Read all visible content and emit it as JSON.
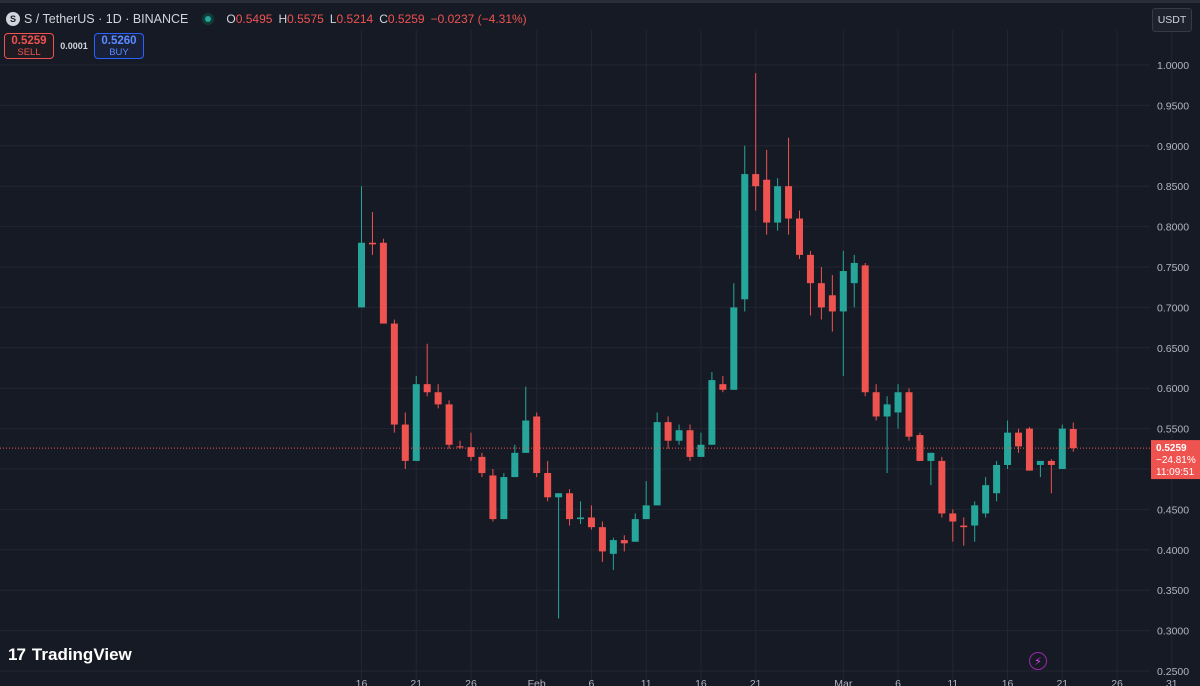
{
  "header": {
    "icon": "sonic-logo-icon",
    "title": "S / TetherUS · 1D · BINANCE",
    "ohlc": [
      {
        "k": "O",
        "v": "0.5495"
      },
      {
        "k": "H",
        "v": "0.5575"
      },
      {
        "k": "L",
        "v": "0.5214"
      },
      {
        "k": "C",
        "v": "0.5259"
      },
      {
        "k": "",
        "v": "−0.0237 (−4.31%)"
      }
    ]
  },
  "trade": {
    "sell_price": "0.5259",
    "sell_label": "SELL",
    "spread": "0.0001",
    "buy_price": "0.5260",
    "buy_label": "BUY"
  },
  "currency": "USDT",
  "brand": "TradingView",
  "colors": {
    "up": "#26a69a",
    "down": "#ef5350",
    "background": "#161a25",
    "grid": "#232632",
    "text": "#b2b5be"
  },
  "price_label": {
    "price": "0.5259",
    "change": "−24.81%",
    "countdown": "11:09:51"
  },
  "chart_data": {
    "type": "candlestick",
    "symbol": "S / TetherUS",
    "interval": "1D",
    "exchange": "BINANCE",
    "ylim": [
      0.25,
      1.0
    ],
    "y_ticks": [
      "1.0000",
      "0.9500",
      "0.9000",
      "0.8500",
      "0.8000",
      "0.7500",
      "0.7000",
      "0.6500",
      "0.6000",
      "0.5500",
      "0.5000",
      "0.4500",
      "0.4000",
      "0.3500",
      "0.3000",
      "0.2500"
    ],
    "x_ticks": [
      {
        "label": "16",
        "index": 0
      },
      {
        "label": "21",
        "index": 5
      },
      {
        "label": "26",
        "index": 10
      },
      {
        "label": "Feb",
        "index": 16
      },
      {
        "label": "6",
        "index": 21
      },
      {
        "label": "11",
        "index": 26
      },
      {
        "label": "16",
        "index": 31
      },
      {
        "label": "21",
        "index": 36
      },
      {
        "label": "Mar",
        "index": 44
      },
      {
        "label": "6",
        "index": 49
      },
      {
        "label": "11",
        "index": 54
      },
      {
        "label": "16",
        "index": 59
      },
      {
        "label": "21",
        "index": 64
      },
      {
        "label": "26",
        "index": 69
      },
      {
        "label": "31",
        "index": 74
      }
    ],
    "candles": [
      {
        "o": 0.7,
        "h": 0.85,
        "l": 0.7,
        "c": 0.78
      },
      {
        "o": 0.78,
        "h": 0.818,
        "l": 0.765,
        "c": 0.778
      },
      {
        "o": 0.78,
        "h": 0.785,
        "l": 0.68,
        "c": 0.68
      },
      {
        "o": 0.68,
        "h": 0.685,
        "l": 0.545,
        "c": 0.555
      },
      {
        "o": 0.555,
        "h": 0.57,
        "l": 0.5,
        "c": 0.51
      },
      {
        "o": 0.51,
        "h": 0.615,
        "l": 0.51,
        "c": 0.605
      },
      {
        "o": 0.605,
        "h": 0.655,
        "l": 0.59,
        "c": 0.595
      },
      {
        "o": 0.595,
        "h": 0.605,
        "l": 0.575,
        "c": 0.58
      },
      {
        "o": 0.58,
        "h": 0.585,
        "l": 0.525,
        "c": 0.53
      },
      {
        "o": 0.528,
        "h": 0.535,
        "l": 0.525,
        "c": 0.527
      },
      {
        "o": 0.527,
        "h": 0.545,
        "l": 0.51,
        "c": 0.515
      },
      {
        "o": 0.515,
        "h": 0.52,
        "l": 0.49,
        "c": 0.495
      },
      {
        "o": 0.492,
        "h": 0.5,
        "l": 0.435,
        "c": 0.438
      },
      {
        "o": 0.438,
        "h": 0.495,
        "l": 0.438,
        "c": 0.49
      },
      {
        "o": 0.49,
        "h": 0.53,
        "l": 0.49,
        "c": 0.52
      },
      {
        "o": 0.52,
        "h": 0.602,
        "l": 0.52,
        "c": 0.56
      },
      {
        "o": 0.565,
        "h": 0.57,
        "l": 0.49,
        "c": 0.495
      },
      {
        "o": 0.495,
        "h": 0.51,
        "l": 0.46,
        "c": 0.465
      },
      {
        "o": 0.465,
        "h": 0.47,
        "l": 0.315,
        "c": 0.47
      },
      {
        "o": 0.47,
        "h": 0.475,
        "l": 0.43,
        "c": 0.438
      },
      {
        "o": 0.438,
        "h": 0.46,
        "l": 0.432,
        "c": 0.44
      },
      {
        "o": 0.44,
        "h": 0.455,
        "l": 0.425,
        "c": 0.428
      },
      {
        "o": 0.428,
        "h": 0.435,
        "l": 0.385,
        "c": 0.398
      },
      {
        "o": 0.395,
        "h": 0.415,
        "l": 0.375,
        "c": 0.412
      },
      {
        "o": 0.412,
        "h": 0.418,
        "l": 0.398,
        "c": 0.408
      },
      {
        "o": 0.41,
        "h": 0.445,
        "l": 0.41,
        "c": 0.438
      },
      {
        "o": 0.438,
        "h": 0.485,
        "l": 0.438,
        "c": 0.455
      },
      {
        "o": 0.455,
        "h": 0.57,
        "l": 0.455,
        "c": 0.558
      },
      {
        "o": 0.558,
        "h": 0.565,
        "l": 0.525,
        "c": 0.535
      },
      {
        "o": 0.535,
        "h": 0.555,
        "l": 0.53,
        "c": 0.548
      },
      {
        "o": 0.548,
        "h": 0.555,
        "l": 0.51,
        "c": 0.515
      },
      {
        "o": 0.515,
        "h": 0.545,
        "l": 0.515,
        "c": 0.53
      },
      {
        "o": 0.53,
        "h": 0.62,
        "l": 0.53,
        "c": 0.61
      },
      {
        "o": 0.605,
        "h": 0.615,
        "l": 0.595,
        "c": 0.598
      },
      {
        "o": 0.598,
        "h": 0.73,
        "l": 0.598,
        "c": 0.7
      },
      {
        "o": 0.71,
        "h": 0.9,
        "l": 0.695,
        "c": 0.865
      },
      {
        "o": 0.865,
        "h": 0.99,
        "l": 0.82,
        "c": 0.85
      },
      {
        "o": 0.858,
        "h": 0.895,
        "l": 0.79,
        "c": 0.805
      },
      {
        "o": 0.805,
        "h": 0.86,
        "l": 0.795,
        "c": 0.85
      },
      {
        "o": 0.85,
        "h": 0.91,
        "l": 0.79,
        "c": 0.81
      },
      {
        "o": 0.81,
        "h": 0.82,
        "l": 0.76,
        "c": 0.765
      },
      {
        "o": 0.765,
        "h": 0.77,
        "l": 0.69,
        "c": 0.73
      },
      {
        "o": 0.73,
        "h": 0.75,
        "l": 0.685,
        "c": 0.7
      },
      {
        "o": 0.715,
        "h": 0.74,
        "l": 0.67,
        "c": 0.695
      },
      {
        "o": 0.695,
        "h": 0.77,
        "l": 0.615,
        "c": 0.745
      },
      {
        "o": 0.73,
        "h": 0.765,
        "l": 0.7,
        "c": 0.755
      },
      {
        "o": 0.752,
        "h": 0.755,
        "l": 0.59,
        "c": 0.595
      },
      {
        "o": 0.595,
        "h": 0.605,
        "l": 0.56,
        "c": 0.565
      },
      {
        "o": 0.565,
        "h": 0.59,
        "l": 0.495,
        "c": 0.58
      },
      {
        "o": 0.57,
        "h": 0.605,
        "l": 0.55,
        "c": 0.595
      },
      {
        "o": 0.595,
        "h": 0.6,
        "l": 0.535,
        "c": 0.54
      },
      {
        "o": 0.542,
        "h": 0.545,
        "l": 0.51,
        "c": 0.51
      },
      {
        "o": 0.51,
        "h": 0.52,
        "l": 0.48,
        "c": 0.52
      },
      {
        "o": 0.51,
        "h": 0.515,
        "l": 0.44,
        "c": 0.445
      },
      {
        "o": 0.445,
        "h": 0.45,
        "l": 0.41,
        "c": 0.435
      },
      {
        "o": 0.43,
        "h": 0.44,
        "l": 0.405,
        "c": 0.428
      },
      {
        "o": 0.43,
        "h": 0.46,
        "l": 0.41,
        "c": 0.455
      },
      {
        "o": 0.445,
        "h": 0.49,
        "l": 0.44,
        "c": 0.48
      },
      {
        "o": 0.47,
        "h": 0.51,
        "l": 0.46,
        "c": 0.505
      },
      {
        "o": 0.505,
        "h": 0.56,
        "l": 0.5,
        "c": 0.545
      },
      {
        "o": 0.545,
        "h": 0.55,
        "l": 0.52,
        "c": 0.528
      },
      {
        "o": 0.55,
        "h": 0.552,
        "l": 0.498,
        "c": 0.498
      },
      {
        "o": 0.505,
        "h": 0.51,
        "l": 0.49,
        "c": 0.51
      },
      {
        "o": 0.51,
        "h": 0.512,
        "l": 0.47,
        "c": 0.505
      },
      {
        "o": 0.5,
        "h": 0.555,
        "l": 0.5,
        "c": 0.55
      },
      {
        "o": 0.5495,
        "h": 0.5575,
        "l": 0.5214,
        "c": 0.5259
      }
    ]
  }
}
